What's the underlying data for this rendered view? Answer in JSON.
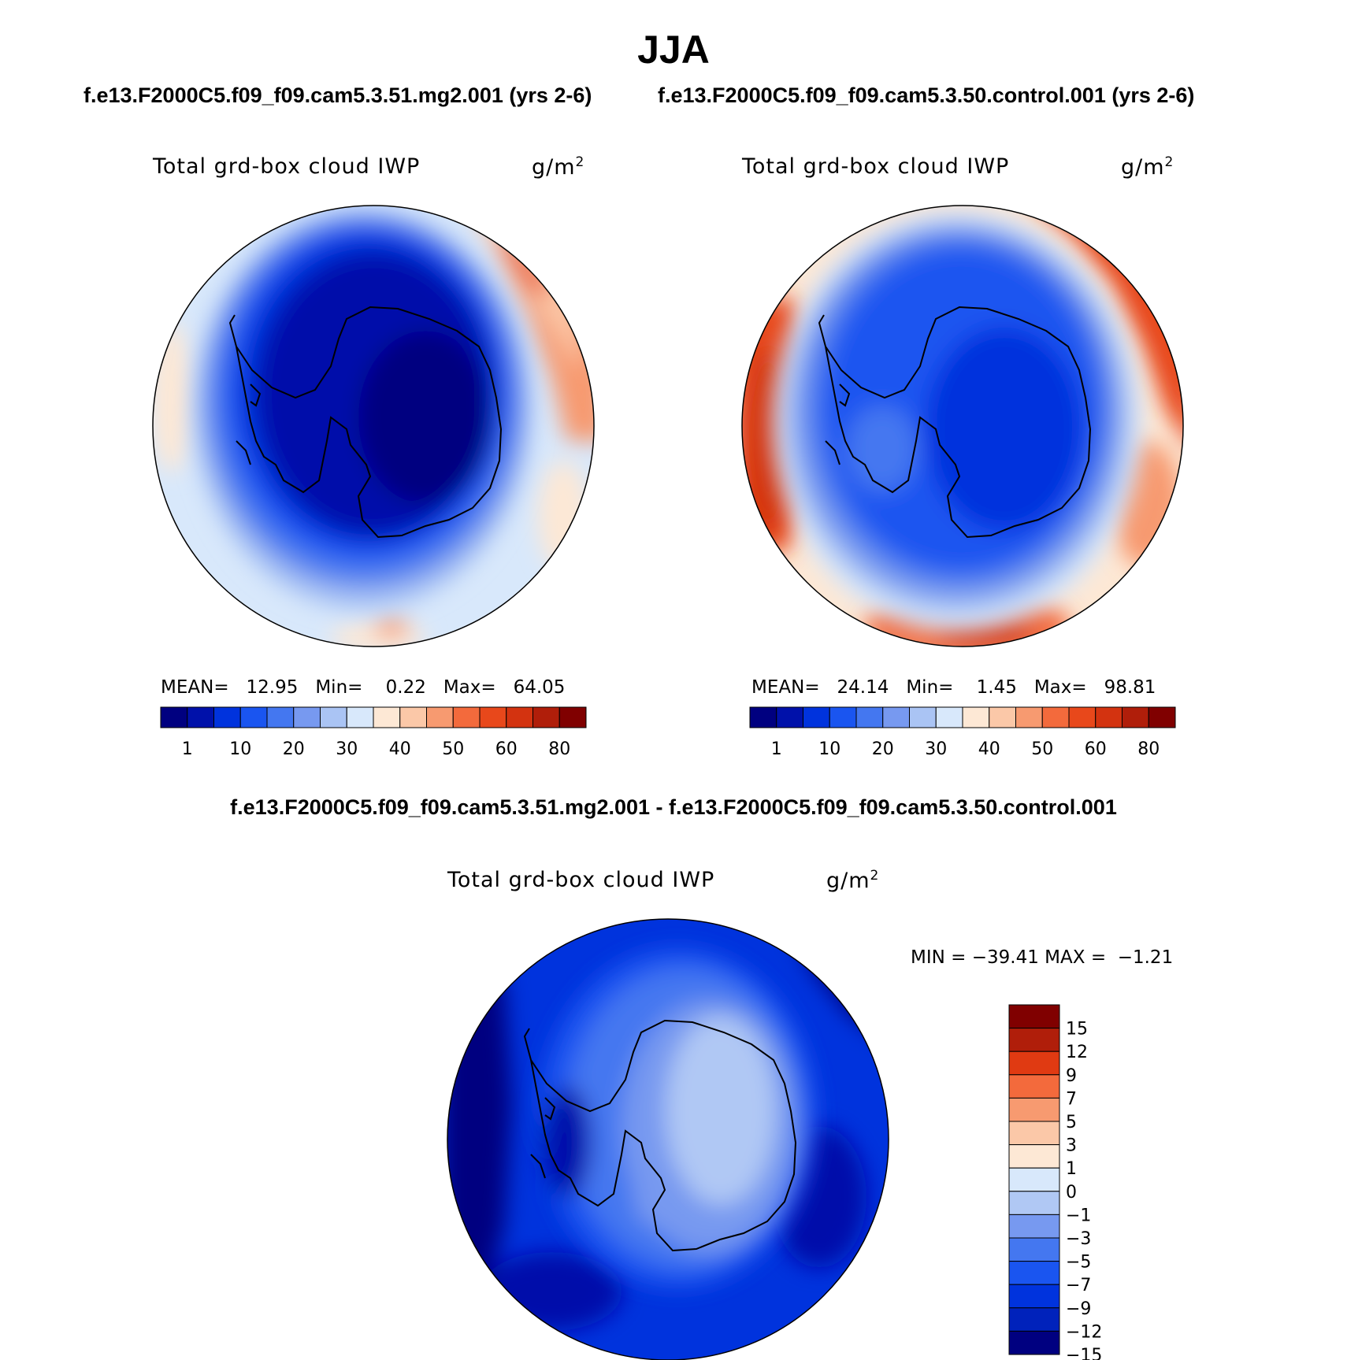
{
  "figure": {
    "season": "JJA",
    "case1": "f.e13.F2000C5.f09_f09.cam5.3.51.mg2.001 (yrs 2-6)",
    "case2": "f.e13.F2000C5.f09_f09.cam5.3.50.control.001 (yrs 2-6)",
    "diff_title": "f.e13.F2000C5.f09_f09.cam5.3.51.mg2.001 - f.e13.F2000C5.f09_f09.cam5.3.50.control.001"
  },
  "colors": {
    "seq": [
      "#000080",
      "#0011aa",
      "#0033dd",
      "#1a55f0",
      "#4477f0",
      "#7799f0",
      "#aac4f4",
      "#d8e8fb",
      "#fde8d5",
      "#fbc8a8",
      "#f79a70",
      "#f36a3c",
      "#e8481b",
      "#d33310",
      "#b01e0a",
      "#800000"
    ],
    "diff": [
      "#000080",
      "#0022bb",
      "#0033dd",
      "#1a55f0",
      "#4477f0",
      "#7799f0",
      "#b0c8f4",
      "#d8e8fb",
      "#fde8d5",
      "#fbc8a8",
      "#f79a70",
      "#f36a3c",
      "#e03a12",
      "#b01e0a",
      "#800000"
    ]
  },
  "chart_data": [
    {
      "type": "heatmap",
      "panel": "top-left",
      "title": "Total grd-box cloud IWP",
      "units": "g/m",
      "units_exp": "2",
      "stats": {
        "mean_label": "MEAN=",
        "mean": "12.95",
        "min_label": "Min=",
        "min": "0.22",
        "max_label": "Max=",
        "max": "64.05"
      },
      "contour_levels": [
        1,
        5,
        10,
        15,
        20,
        25,
        30,
        35,
        40,
        45,
        50,
        55,
        60,
        70,
        80
      ],
      "colorbar_tick_labels": [
        "1",
        "10",
        "20",
        "30",
        "40",
        "50",
        "60",
        "80"
      ]
    },
    {
      "type": "heatmap",
      "panel": "top-right",
      "title": "Total grd-box cloud IWP",
      "units": "g/m",
      "units_exp": "2",
      "stats": {
        "mean_label": "MEAN=",
        "mean": "24.14",
        "min_label": "Min=",
        "min": "1.45",
        "max_label": "Max=",
        "max": "98.81"
      },
      "contour_levels": [
        1,
        5,
        10,
        15,
        20,
        25,
        30,
        35,
        40,
        45,
        50,
        55,
        60,
        70,
        80
      ],
      "colorbar_tick_labels": [
        "1",
        "10",
        "20",
        "30",
        "40",
        "50",
        "60",
        "80"
      ]
    },
    {
      "type": "heatmap",
      "panel": "bottom-difference",
      "title": "Total grd-box cloud IWP",
      "units": "g/m",
      "units_exp": "2",
      "stats": {
        "min_label": "MIN =",
        "min": "−39.41",
        "max_label": "MAX =",
        "max": "−1.21"
      },
      "contour_levels": [
        -15,
        -12,
        -9,
        -7,
        -5,
        -3,
        -1,
        0,
        1,
        3,
        5,
        7,
        9,
        12,
        15
      ],
      "colorbar_tick_labels": [
        "15",
        "12",
        "9",
        "7",
        "5",
        "3",
        "1",
        "0",
        "−1",
        "−3",
        "−5",
        "−7",
        "−9",
        "−12",
        "−15"
      ]
    }
  ]
}
